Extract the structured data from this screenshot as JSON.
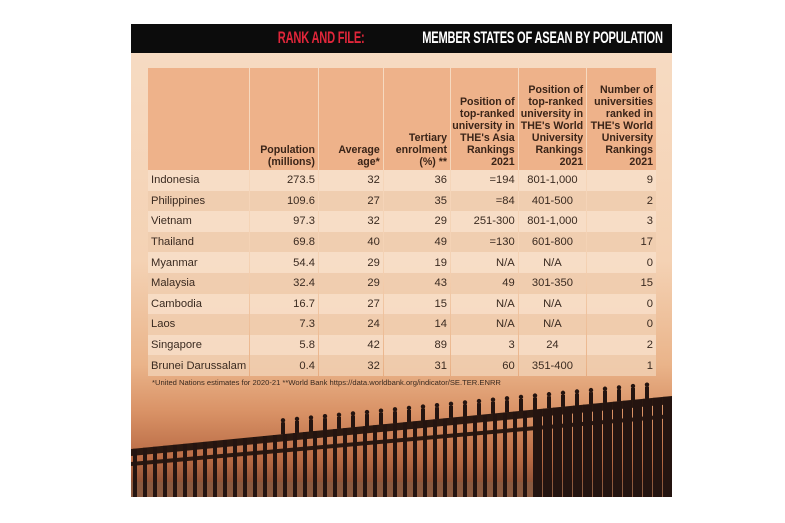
{
  "title": {
    "highlight": "RANK AND FILE:",
    "rest": " MEMBER STATES OF ASEAN BY POPULATION"
  },
  "chart_data": {
    "type": "table",
    "title": "RANK AND FILE: MEMBER STATES OF ASEAN BY POPULATION",
    "columns": [
      "",
      "Population (millions)",
      "Average age*",
      "Tertiary enrolment (%) **",
      "Position of top-ranked university in THE's Asia Rankings 2021",
      "Position of top-ranked university in THE's World University Rankings 2021",
      "Number of universities ranked in THE's World University Rankings 2021"
    ],
    "rows": [
      [
        "Indonesia",
        "273.5",
        "32",
        "36",
        "=194",
        "801-1,000",
        "9"
      ],
      [
        "Philippines",
        "109.6",
        "27",
        "35",
        "=84",
        "401-500",
        "2"
      ],
      [
        "Vietnam",
        "97.3",
        "32",
        "29",
        "251-300",
        "801-1,000",
        "3"
      ],
      [
        "Thailand",
        "69.8",
        "40",
        "49",
        "=130",
        "601-800",
        "17"
      ],
      [
        "Myanmar",
        "54.4",
        "29",
        "19",
        "N/A",
        "N/A",
        "0"
      ],
      [
        "Malaysia",
        "32.4",
        "29",
        "43",
        "49",
        "301-350",
        "15"
      ],
      [
        "Cambodia",
        "16.7",
        "27",
        "15",
        "N/A",
        "N/A",
        "0"
      ],
      [
        "Laos",
        "7.3",
        "24",
        "14",
        "N/A",
        "N/A",
        "0"
      ],
      [
        "Singapore",
        "5.8",
        "42",
        "89",
        "3",
        "24",
        "2"
      ],
      [
        "Brunei Darussalam",
        "0.4",
        "32",
        "31",
        "60",
        "351-400",
        "1"
      ]
    ],
    "footnote": "*United Nations estimates for 2020-21 **World Bank https://data.worldbank.org/indicator/SE.TER.ENRR"
  },
  "colors": {
    "title_bg": "#0c0c0c",
    "title_highlight": "#e0263a",
    "header_bg": "#eeb28a"
  }
}
